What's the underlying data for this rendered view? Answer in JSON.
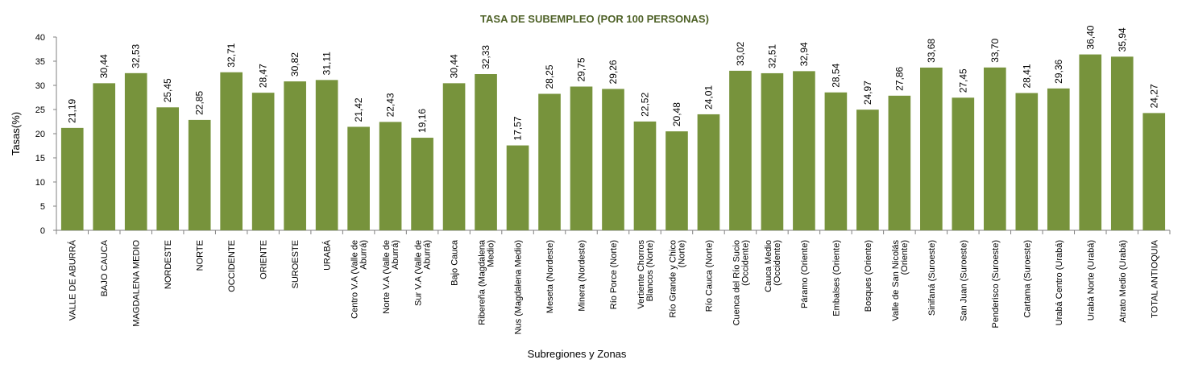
{
  "chart_data": {
    "type": "bar",
    "title": "TASA DE SUBEMPLEO (POR 100 PERSONAS)",
    "xlabel": "Subregiones y Zonas",
    "ylabel": "Tasas(%)",
    "ylim": [
      0,
      40
    ],
    "yticks": [
      0,
      5,
      10,
      15,
      20,
      25,
      30,
      35,
      40
    ],
    "grid": false,
    "legend": "none",
    "bar_color": "#77933C",
    "title_color": "#4F6228",
    "categories": [
      [
        "VALLE DE ABURRÁ"
      ],
      [
        "BAJO CAUCA"
      ],
      [
        "MAGDALENA MEDIO"
      ],
      [
        "NORDESTE"
      ],
      [
        "NORTE"
      ],
      [
        "OCCIDENTE"
      ],
      [
        "ORIENTE"
      ],
      [
        "SUROESTE"
      ],
      [
        "URABÁ"
      ],
      [
        "Centro V.A (Valle de",
        "Aburrá)"
      ],
      [
        "Norte V.A (Valle de",
        "Aburrá)"
      ],
      [
        "Sur V.A (Valle de",
        "Aburrá)"
      ],
      [
        "Bajo Cauca"
      ],
      [
        "Ribereña (Magdalena",
        "Medio)"
      ],
      [
        "Nus (Magdalena Medio)"
      ],
      [
        "Meseta (Nordeste)"
      ],
      [
        "Minera (Nordeste)"
      ],
      [
        "Río Porce (Norte)"
      ],
      [
        "Vertiente Chorros",
        "Blancos (Norte)"
      ],
      [
        "Río Grande y Chico",
        "(Norte)"
      ],
      [
        "Río Cauca (Norte)"
      ],
      [
        "Cuenca del Río Sucio",
        "(Occidente)"
      ],
      [
        "Cauca Medio",
        "(Occidente)"
      ],
      [
        "Páramo (Oriente)"
      ],
      [
        "Embalses (Oriente)"
      ],
      [
        "Bosques (Oriente)"
      ],
      [
        "Valle de San Nicolás",
        "(Oriente)"
      ],
      [
        "Sinifaná (Suroeste)"
      ],
      [
        "San Juan (Suroeste)"
      ],
      [
        "Penderisco (Suroeste)"
      ],
      [
        "Cartama (Suroeste)"
      ],
      [
        "Urabá Centro (Urabá)"
      ],
      [
        "Urabá Norte (Urabá)"
      ],
      [
        "Atrato Medio (Urabá)"
      ],
      [
        "TOTAL ANTIOQUIA"
      ]
    ],
    "values": [
      21.19,
      30.44,
      32.53,
      25.45,
      22.85,
      32.71,
      28.47,
      30.82,
      31.11,
      21.42,
      22.43,
      19.16,
      30.44,
      32.33,
      17.57,
      28.25,
      29.75,
      29.26,
      22.52,
      20.48,
      24.01,
      33.02,
      32.51,
      32.94,
      28.54,
      24.97,
      27.86,
      33.68,
      27.45,
      33.7,
      28.41,
      29.36,
      36.4,
      35.94,
      24.27
    ],
    "value_labels": [
      "21,19",
      "30,44",
      "32,53",
      "25,45",
      "22,85",
      "32,71",
      "28,47",
      "30,82",
      "31,11",
      "21,42",
      "22,43",
      "19,16",
      "30,44",
      "32,33",
      "17,57",
      "28,25",
      "29,75",
      "29,26",
      "22,52",
      "20,48",
      "24,01",
      "33,02",
      "32,51",
      "32,94",
      "28,54",
      "24,97",
      "27,86",
      "33,68",
      "27,45",
      "33,70",
      "28,41",
      "29,36",
      "36,40",
      "35,94",
      "24,27"
    ]
  }
}
